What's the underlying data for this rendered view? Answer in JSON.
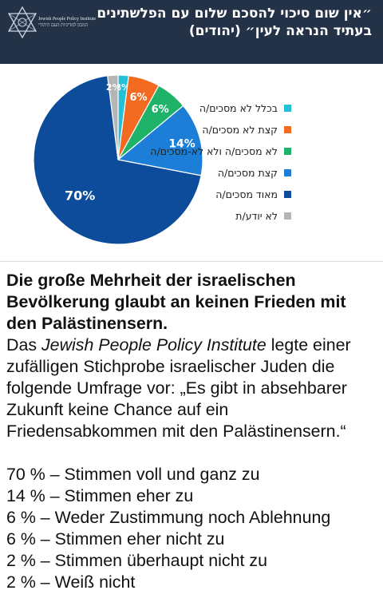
{
  "header": {
    "logo_text": [
      "Jewish People Policy Institute",
      "המכון למדיניות העם היהודי"
    ],
    "title_line1": "״אין שום סיכוי להסכם שלום עם הפלשתינים",
    "title_line2": "בעתיד הנראה לעין״ (יהודים)"
  },
  "colors": {
    "banner": "#243247",
    "slices": [
      "#24c0d8",
      "#f26b21",
      "#1fb36a",
      "#1c7ed6",
      "#0d4c9a",
      "#b5b5b5"
    ]
  },
  "chart_data": {
    "type": "pie",
    "title": "״אין שום סיכוי להסכם שלום עם הפלשתינים בעתיד הנראה לעין״ (יהודים)",
    "labels": [
      "בכלל לא מסכים/ה",
      "קצת לא מסכים/ה",
      "לא מסכים/ה ולא לא-מסכים/ה",
      "קצת מסכים/ה",
      "מאוד מסכים/ה",
      "לא יודע/ת"
    ],
    "values": [
      2,
      6,
      6,
      14,
      70,
      2
    ],
    "value_labels": [
      "2%",
      "6%",
      "6%",
      "14%",
      "70%",
      "2%"
    ],
    "legend_position": "right"
  },
  "article": {
    "headline": "Die große Mehrheit der israelischen Bevölkerung glaubt an keinen Frieden mit den Palästinensern.",
    "body_before": "Das ",
    "body_emphasis": "Jewish People Policy Institute",
    "body_after": " legte einer zufälligen Stichprobe israelischer Juden die folgende Umfrage vor: „Es gibt in absehbarer Zukunft keine Chance auf ein Friedensabkommen mit den Palästinensern.“",
    "stats": [
      "70 % – Stimmen voll und ganz zu",
      "14 % – Stimmen eher zu",
      "6 % – Weder Zustimmung noch Ablehnung",
      "6 % – Stimmen eher nicht zu",
      "2 % – Stimmen überhaupt nicht zu",
      "2 % – Weiß nicht"
    ]
  }
}
